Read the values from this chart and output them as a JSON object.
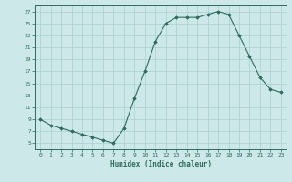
{
  "x": [
    0,
    1,
    2,
    3,
    4,
    5,
    6,
    7,
    8,
    9,
    10,
    11,
    12,
    13,
    14,
    15,
    16,
    17,
    18,
    19,
    20,
    21,
    22,
    23
  ],
  "y": [
    9,
    8,
    7.5,
    7,
    6.5,
    6,
    5.5,
    5,
    7.5,
    12.5,
    17,
    22,
    25,
    26,
    26,
    26,
    26.5,
    27,
    26.5,
    23,
    19.5,
    16,
    14,
    13.5
  ],
  "xlabel": "Humidex (Indice chaleur)",
  "ylabel": "",
  "line_color": "#2e6b5e",
  "marker": "D",
  "marker_size": 1.8,
  "bg_color": "#cce8e8",
  "grid_color": "#aacfcf",
  "tick_color": "#2e6b5e",
  "xlim": [
    -0.5,
    23.5
  ],
  "ylim": [
    4,
    28
  ],
  "yticks": [
    5,
    7,
    9,
    11,
    13,
    15,
    17,
    19,
    21,
    23,
    25,
    27
  ],
  "xticks": [
    0,
    1,
    2,
    3,
    4,
    5,
    6,
    7,
    8,
    9,
    10,
    11,
    12,
    13,
    14,
    15,
    16,
    17,
    18,
    19,
    20,
    21,
    22,
    23
  ]
}
